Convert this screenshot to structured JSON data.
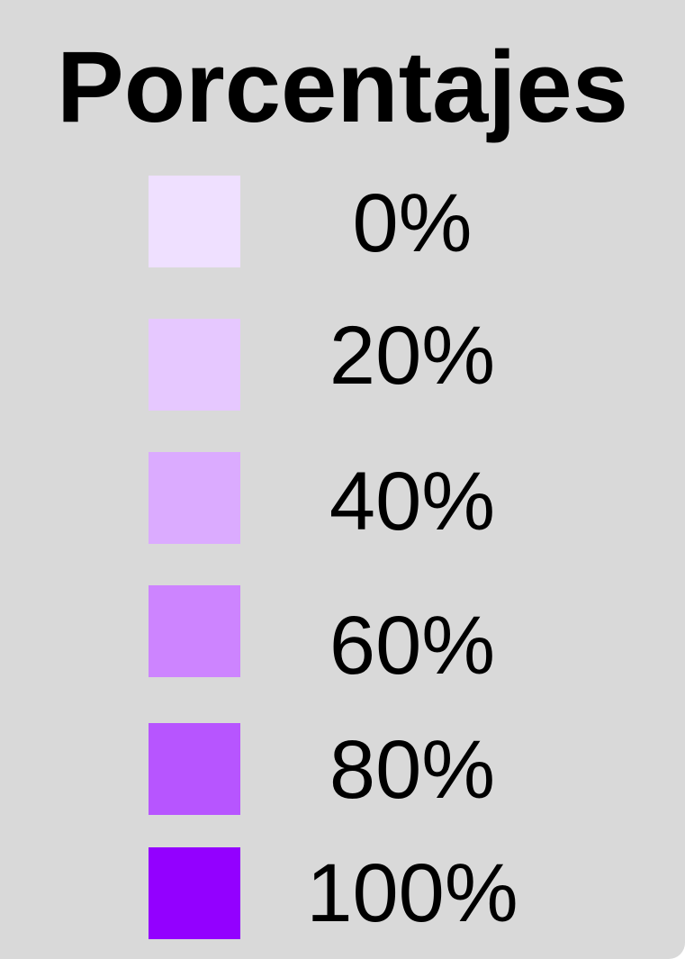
{
  "chart_data": {
    "type": "legend",
    "title": "Porcentajes",
    "items": [
      {
        "label": "0%",
        "value": 0,
        "color": "#efe0ff"
      },
      {
        "label": "20%",
        "value": 20,
        "color": "#e6c8ff"
      },
      {
        "label": "40%",
        "value": 40,
        "color": "#dbabff"
      },
      {
        "label": "60%",
        "value": 60,
        "color": "#cd84ff"
      },
      {
        "label": "80%",
        "value": 80,
        "color": "#b755ff"
      },
      {
        "label": "100%",
        "value": 100,
        "color": "#9300ff"
      }
    ]
  }
}
